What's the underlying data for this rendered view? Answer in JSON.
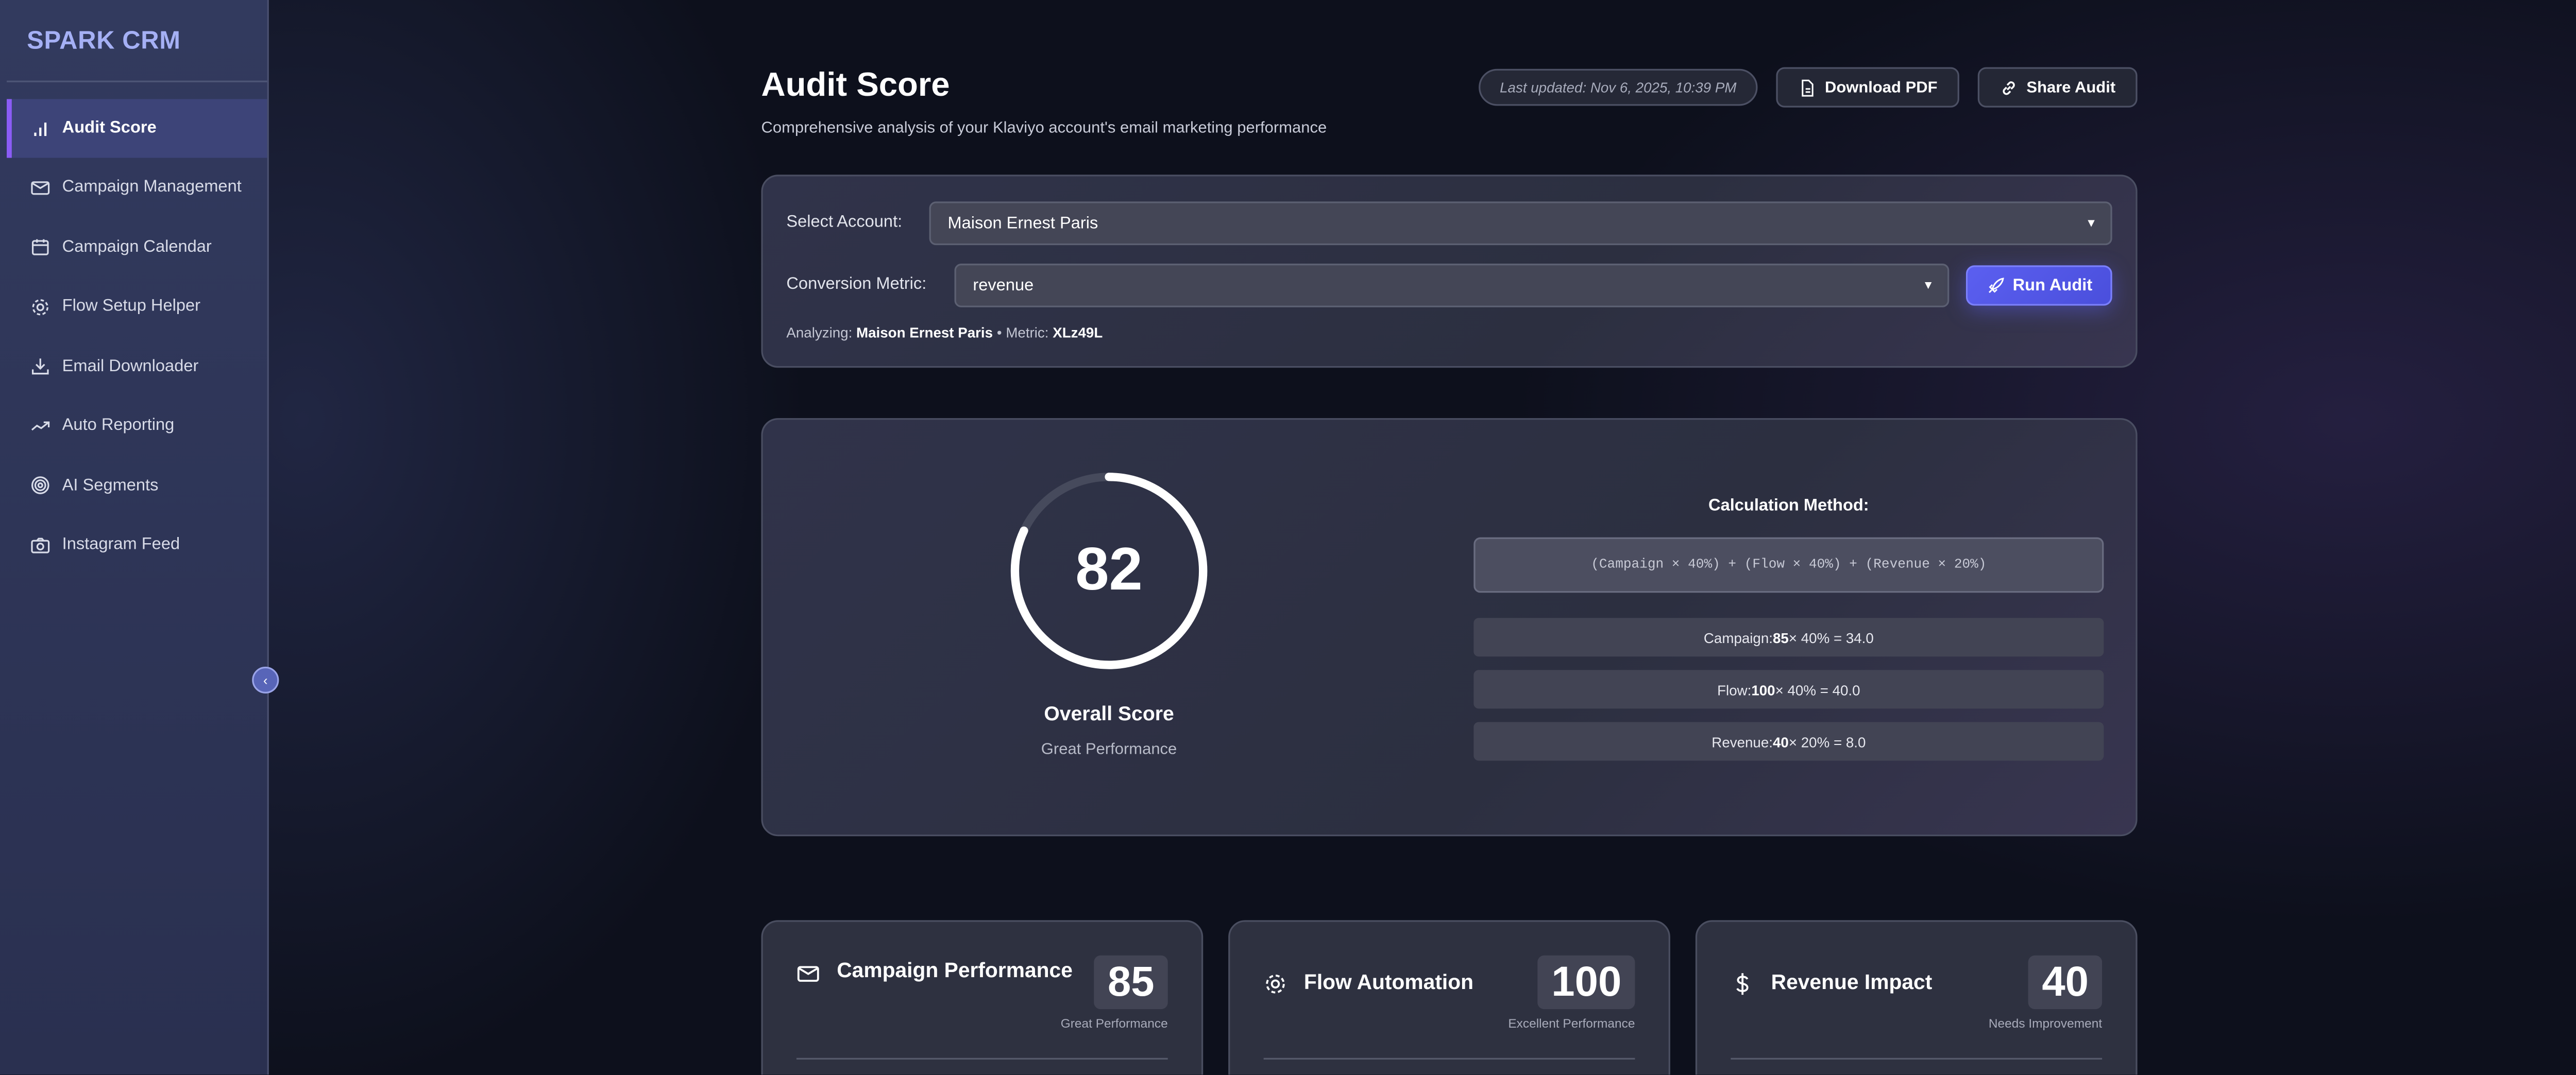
{
  "app": {
    "name": "SPARK CRM"
  },
  "sidebar": {
    "items": [
      {
        "label": "Audit Score",
        "icon": "bar-chart-icon",
        "active": true
      },
      {
        "label": "Campaign Management",
        "icon": "mail-icon"
      },
      {
        "label": "Campaign Calendar",
        "icon": "calendar-icon"
      },
      {
        "label": "Flow Setup Helper",
        "icon": "gear-icon"
      },
      {
        "label": "Email Downloader",
        "icon": "download-icon"
      },
      {
        "label": "Auto Reporting",
        "icon": "trending-up-icon"
      },
      {
        "label": "AI Segments",
        "icon": "target-icon"
      },
      {
        "label": "Instagram Feed",
        "icon": "camera-icon"
      }
    ],
    "collapse_icon": "chevron-left-icon"
  },
  "header": {
    "title": "Audit Score",
    "subtitle": "Comprehensive analysis of your Klaviyo account's email marketing performance",
    "last_updated": "Last updated: Nov 6, 2025, 10:39 PM",
    "download_label": "Download PDF",
    "share_label": "Share Audit"
  },
  "form": {
    "account_label": "Select Account:",
    "account_value": "Maison Ernest Paris",
    "metric_label": "Conversion Metric:",
    "metric_value": "revenue",
    "run_label": "Run Audit",
    "analyzing_label": "Analyzing:",
    "analyzing_value": "Maison Ernest Paris",
    "separator": "•",
    "metric_id_label": "Metric:",
    "metric_id_value": "XLz49L",
    "accent": "#5b5ff0"
  },
  "score": {
    "value": "82",
    "percent": 82,
    "label": "Overall Score",
    "status": "Great Performance"
  },
  "calculation": {
    "title": "Calculation Method:",
    "formula": "(Campaign × 40%) + (Flow × 40%) + (Revenue × 20%)",
    "rows": [
      {
        "name": "Campaign:",
        "score": "85",
        "rest": "× 40% = 34.0"
      },
      {
        "name": "Flow:",
        "score": "100",
        "rest": "× 40% = 40.0"
      },
      {
        "name": "Revenue:",
        "score": "40",
        "rest": "× 20% = 8.0"
      }
    ]
  },
  "metrics": [
    {
      "title": "Campaign Performance",
      "score": "85",
      "status": "Great Performance",
      "icon": "mail-icon"
    },
    {
      "title": "Flow Automation",
      "score": "100",
      "status": "Excellent Performance",
      "icon": "gear-icon"
    },
    {
      "title": "Revenue Impact",
      "score": "40",
      "status": "Needs Improvement",
      "icon": "dollar-icon"
    }
  ]
}
